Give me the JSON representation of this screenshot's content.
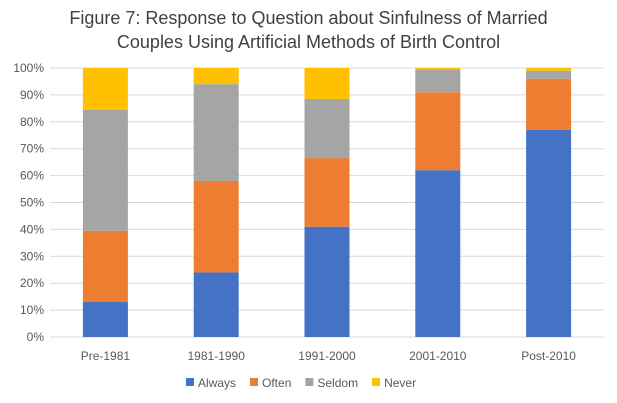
{
  "chart_data": {
    "type": "bar",
    "stacked": true,
    "title_lines": [
      "Figure 7: Response to Question about Sinfulness of Married",
      "Couples Using Artificial Methods of Birth Control"
    ],
    "categories": [
      "Pre-1981",
      "1981-1990",
      "1991-2000",
      "2001-2010",
      "Post-2010"
    ],
    "series": [
      {
        "name": "Always",
        "color": "#4472C4",
        "values": [
          13,
          24,
          41,
          62,
          77
        ]
      },
      {
        "name": "Often",
        "color": "#ED7D31",
        "values": [
          26.5,
          34,
          25.5,
          29,
          19
        ]
      },
      {
        "name": "Seldom",
        "color": "#A5A5A5",
        "values": [
          45,
          36,
          22,
          8.5,
          3
        ]
      },
      {
        "name": "Never",
        "color": "#FFC000",
        "values": [
          15.5,
          6,
          11.5,
          0.5,
          1
        ]
      }
    ],
    "ylim": [
      0,
      100
    ],
    "yticks": [
      "0%",
      "10%",
      "20%",
      "30%",
      "40%",
      "50%",
      "60%",
      "70%",
      "80%",
      "90%",
      "100%"
    ],
    "grid": true,
    "legend": "bottom"
  }
}
